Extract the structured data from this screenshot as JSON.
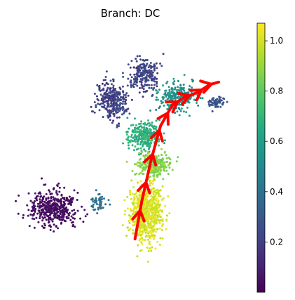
{
  "chart_data": {
    "type": "scatter",
    "title": "Branch: DC",
    "xlabel": "",
    "ylabel": "",
    "axes_visible": false,
    "colormap": "viridis",
    "colorbar": {
      "range": [
        0.0,
        1.07
      ],
      "ticks": [
        0.2,
        0.4,
        0.6,
        0.8,
        1.0
      ],
      "tick_labels": [
        "0.2",
        "0.4",
        "0.6",
        "0.8",
        "1.0"
      ]
    },
    "embedding_range": {
      "x": [
        0,
        100
      ],
      "y": [
        0,
        100
      ]
    },
    "point_clusters": [
      {
        "name": "left lobe",
        "center": [
          17,
          30
        ],
        "spread": [
          9.5,
          6.0
        ],
        "value_range": [
          0.0,
          0.08
        ],
        "count": 420
      },
      {
        "name": "bridge",
        "center": [
          36,
          32
        ],
        "spread": [
          3.0,
          3.0
        ],
        "value_range": [
          0.35,
          0.45
        ],
        "count": 50
      },
      {
        "name": "upper left",
        "center": [
          42,
          72
        ],
        "spread": [
          6.0,
          7.0
        ],
        "value_range": [
          0.12,
          0.3
        ],
        "count": 300
      },
      {
        "name": "upper middle",
        "center": [
          56,
          82
        ],
        "spread": [
          6.0,
          6.0
        ],
        "value_range": [
          0.15,
          0.3
        ],
        "count": 220
      },
      {
        "name": "upper right",
        "center": [
          70,
          73
        ],
        "spread": [
          7.0,
          5.0
        ],
        "value_range": [
          0.45,
          0.65
        ],
        "count": 240
      },
      {
        "name": "right tip",
        "center": [
          87,
          71
        ],
        "spread": [
          3.5,
          2.0
        ],
        "value_range": [
          0.2,
          0.35
        ],
        "count": 60
      },
      {
        "name": "middle",
        "center": [
          56,
          58
        ],
        "spread": [
          6.5,
          4.5
        ],
        "value_range": [
          0.6,
          0.75
        ],
        "count": 300
      },
      {
        "name": "lower middle",
        "center": [
          60,
          47
        ],
        "spread": [
          6.5,
          4.0
        ],
        "value_range": [
          0.82,
          0.92
        ],
        "count": 300
      },
      {
        "name": "stem",
        "center": [
          57,
          28
        ],
        "spread": [
          6.0,
          10.0
        ],
        "value_range": [
          0.95,
          1.07
        ],
        "count": 700
      }
    ],
    "trajectory": {
      "color": "#ff0000",
      "points": [
        [
          52,
          18
        ],
        [
          55,
          33
        ],
        [
          59,
          49
        ],
        [
          63,
          62
        ],
        [
          68,
          70
        ],
        [
          73,
          73
        ],
        [
          79,
          75
        ],
        [
          84,
          78
        ],
        [
          88,
          79
        ]
      ],
      "arrowheads_at": [
        0.15,
        0.3,
        0.45,
        0.58,
        0.68,
        0.76,
        0.83,
        0.9,
        0.96
      ]
    }
  }
}
